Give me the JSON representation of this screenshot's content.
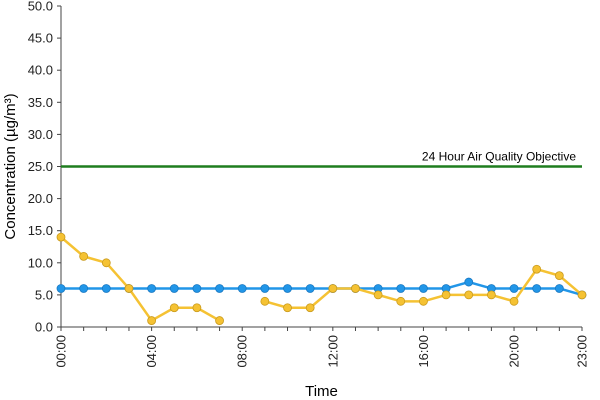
{
  "chart_data": {
    "type": "line",
    "title": "",
    "xlabel": "Time",
    "ylabel": "Concentration (µg/m³)",
    "ylim": [
      0,
      50
    ],
    "y_ticks": [
      "0.0",
      "5.0",
      "10.0",
      "15.0",
      "20.0",
      "25.0",
      "30.0",
      "35.0",
      "40.0",
      "45.0",
      "50.0"
    ],
    "x_ticks": [
      "00:00",
      "04:00",
      "08:00",
      "12:00",
      "16:00",
      "20:00",
      "23:00"
    ],
    "x_tick_hours": [
      0,
      4,
      8,
      12,
      16,
      20,
      23
    ],
    "x_hours": [
      0,
      1,
      2,
      3,
      4,
      5,
      6,
      7,
      8,
      9,
      10,
      11,
      12,
      13,
      14,
      15,
      16,
      17,
      18,
      19,
      20,
      21,
      22,
      23
    ],
    "grid": false,
    "legend": "none",
    "series": [
      {
        "color": "#2196e8",
        "values": [
          6,
          6,
          6,
          6,
          6,
          6,
          6,
          6,
          6,
          6,
          6,
          6,
          6,
          6,
          6,
          6,
          6,
          6,
          7,
          6,
          6,
          6,
          6,
          5
        ]
      },
      {
        "color": "#f5c233",
        "values": [
          14,
          11,
          10,
          6,
          1,
          3,
          3,
          1,
          null,
          4,
          3,
          3,
          6,
          6,
          5,
          4,
          4,
          5,
          5,
          5,
          4,
          9,
          8,
          5
        ]
      }
    ],
    "objective": {
      "value": 25,
      "label": "24 Hour Air Quality Objective",
      "color": "#1e7d1e"
    }
  }
}
